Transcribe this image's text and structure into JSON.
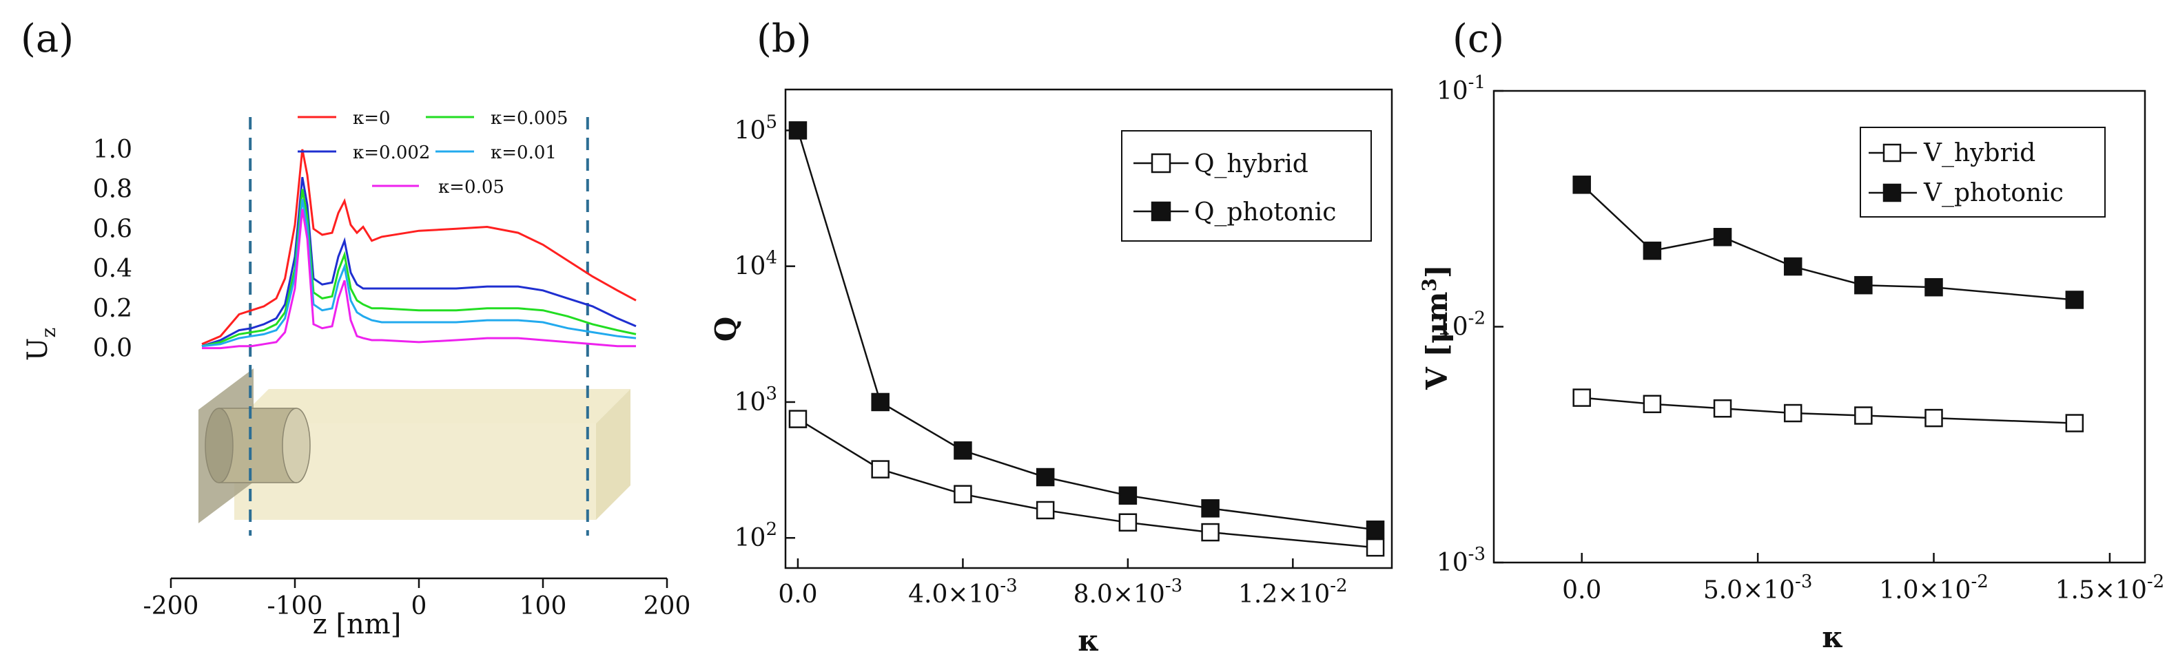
{
  "chart_data": [
    {
      "panel": "(a)",
      "type": "line",
      "xlabel": "z [nm]",
      "ylabel": "U",
      "ylabel_sub": "z",
      "xlim": [
        -200,
        200
      ],
      "ylim": [
        -0.05,
        1.1
      ],
      "xticks": [
        "-200",
        "-100",
        "0",
        "100",
        "200"
      ],
      "xtick_values": [
        -200,
        -100,
        0,
        100,
        200
      ],
      "yticks": [
        "0.0",
        "0.2",
        "0.4",
        "0.6",
        "0.8",
        "1.0"
      ],
      "ytick_values": [
        0.0,
        0.2,
        0.4,
        0.6,
        0.8,
        1.0
      ],
      "dashed_lines_x": [
        -136,
        136
      ],
      "legend": [
        "κ=0",
        "κ=0.005",
        "κ=0.002",
        "κ=0.01",
        "κ=0.05"
      ],
      "series": [
        {
          "name": "κ=0",
          "color": "#ff2020",
          "x": [
            -175,
            -160,
            -145,
            -135,
            -125,
            -115,
            -108,
            -100,
            -94,
            -90,
            -85,
            -78,
            -70,
            -65,
            -60,
            -55,
            -50,
            -45,
            -38,
            -30,
            0,
            30,
            55,
            80,
            100,
            120,
            140,
            160,
            175
          ],
          "y": [
            0.02,
            0.06,
            0.17,
            0.19,
            0.21,
            0.25,
            0.35,
            0.62,
            1.0,
            0.87,
            0.6,
            0.57,
            0.58,
            0.68,
            0.74,
            0.62,
            0.58,
            0.61,
            0.54,
            0.56,
            0.59,
            0.6,
            0.61,
            0.58,
            0.52,
            0.44,
            0.36,
            0.29,
            0.24
          ]
        },
        {
          "name": "κ=0.002",
          "color": "#1f2fd0",
          "x": [
            -175,
            -160,
            -145,
            -135,
            -125,
            -115,
            -108,
            -100,
            -94,
            -90,
            -85,
            -78,
            -70,
            -65,
            -60,
            -55,
            -50,
            -45,
            -38,
            -30,
            0,
            30,
            55,
            80,
            100,
            120,
            140,
            160,
            175
          ],
          "y": [
            0.01,
            0.04,
            0.09,
            0.1,
            0.12,
            0.15,
            0.22,
            0.46,
            0.86,
            0.72,
            0.35,
            0.32,
            0.33,
            0.46,
            0.54,
            0.38,
            0.32,
            0.3,
            0.3,
            0.3,
            0.3,
            0.3,
            0.31,
            0.31,
            0.29,
            0.25,
            0.21,
            0.15,
            0.11
          ]
        },
        {
          "name": "κ=0.005",
          "color": "#22dd22",
          "x": [
            -175,
            -160,
            -145,
            -135,
            -125,
            -115,
            -108,
            -100,
            -94,
            -90,
            -85,
            -78,
            -70,
            -65,
            -60,
            -55,
            -50,
            -45,
            -38,
            -30,
            0,
            30,
            55,
            80,
            100,
            120,
            140,
            160,
            175
          ],
          "y": [
            0.01,
            0.03,
            0.07,
            0.08,
            0.09,
            0.12,
            0.18,
            0.4,
            0.8,
            0.66,
            0.28,
            0.25,
            0.26,
            0.39,
            0.47,
            0.3,
            0.24,
            0.22,
            0.2,
            0.2,
            0.19,
            0.19,
            0.2,
            0.2,
            0.19,
            0.16,
            0.12,
            0.09,
            0.07
          ]
        },
        {
          "name": "κ=0.01",
          "color": "#22aaee",
          "x": [
            -175,
            -160,
            -145,
            -135,
            -125,
            -115,
            -108,
            -100,
            -94,
            -90,
            -85,
            -78,
            -70,
            -65,
            -60,
            -55,
            -50,
            -45,
            -38,
            -30,
            0,
            30,
            55,
            80,
            100,
            120,
            140,
            160,
            175
          ],
          "y": [
            0.01,
            0.02,
            0.05,
            0.06,
            0.07,
            0.09,
            0.15,
            0.36,
            0.75,
            0.61,
            0.22,
            0.19,
            0.2,
            0.33,
            0.41,
            0.24,
            0.18,
            0.16,
            0.14,
            0.13,
            0.13,
            0.13,
            0.14,
            0.14,
            0.13,
            0.1,
            0.08,
            0.06,
            0.05
          ]
        },
        {
          "name": "κ=0.05",
          "color": "#ee22ee",
          "x": [
            -175,
            -160,
            -145,
            -135,
            -125,
            -115,
            -108,
            -100,
            -94,
            -90,
            -85,
            -78,
            -70,
            -65,
            -60,
            -55,
            -50,
            -45,
            -38,
            -30,
            0,
            30,
            55,
            80,
            100,
            120,
            140,
            160,
            175
          ],
          "y": [
            0.0,
            0.0,
            0.01,
            0.01,
            0.02,
            0.03,
            0.08,
            0.3,
            0.7,
            0.55,
            0.12,
            0.1,
            0.11,
            0.25,
            0.34,
            0.14,
            0.06,
            0.05,
            0.04,
            0.04,
            0.03,
            0.04,
            0.05,
            0.05,
            0.04,
            0.03,
            0.02,
            0.01,
            0.01
          ]
        }
      ]
    },
    {
      "panel": "(b)",
      "type": "line",
      "yscale": "log",
      "xlabel": "κ",
      "ylabel": "Q",
      "xlim": [
        -0.0003,
        0.0144
      ],
      "ylim": [
        60,
        200000
      ],
      "xticks": [
        "0.0",
        "4.0×10-3",
        "8.0×10-3",
        "1.2×10-2"
      ],
      "xtick_values": [
        0.0,
        0.004,
        0.008,
        0.012
      ],
      "yticks": [
        "10^2",
        "10^3",
        "10^4",
        "10^5"
      ],
      "ytick_values": [
        100,
        1000,
        10000,
        100000
      ],
      "legend_position": "top-right",
      "series": [
        {
          "name": "Q_hybrid",
          "marker": "open-square",
          "x": [
            0.0,
            0.002,
            0.004,
            0.006,
            0.008,
            0.01,
            0.014
          ],
          "y": [
            750,
            320,
            210,
            160,
            130,
            110,
            85
          ]
        },
        {
          "name": "Q_photonic",
          "marker": "filled-square",
          "x": [
            0.0,
            0.002,
            0.004,
            0.006,
            0.008,
            0.01,
            0.014
          ],
          "y": [
            100000,
            1000,
            440,
            280,
            205,
            165,
            115
          ]
        }
      ]
    },
    {
      "panel": "(c)",
      "type": "line",
      "yscale": "log",
      "xlabel": "κ",
      "ylabel": "V [μm",
      "ylabel_sup": "3",
      "ylabel_end": "]",
      "xlim": [
        -0.0025,
        0.016
      ],
      "ylim": [
        0.001,
        0.1
      ],
      "xticks": [
        "0.0",
        "5.0×10-3",
        "1.0×10-2",
        "1.5×10-2"
      ],
      "xtick_values": [
        0.0,
        0.005,
        0.01,
        0.015
      ],
      "yticks": [
        "10^-3",
        "10^-2",
        "10^-1"
      ],
      "ytick_values": [
        0.001,
        0.01,
        0.1
      ],
      "legend_position": "top-right",
      "series": [
        {
          "name": "V_hybrid",
          "marker": "open-square",
          "x": [
            0.0,
            0.002,
            0.004,
            0.006,
            0.008,
            0.01,
            0.014
          ],
          "y": [
            0.005,
            0.0047,
            0.0045,
            0.0043,
            0.0042,
            0.0041,
            0.0039
          ]
        },
        {
          "name": "V_photonic",
          "marker": "filled-square",
          "x": [
            0.0,
            0.002,
            0.004,
            0.006,
            0.008,
            0.01,
            0.014
          ],
          "y": [
            0.04,
            0.021,
            0.024,
            0.018,
            0.015,
            0.0147,
            0.013
          ]
        }
      ]
    }
  ]
}
